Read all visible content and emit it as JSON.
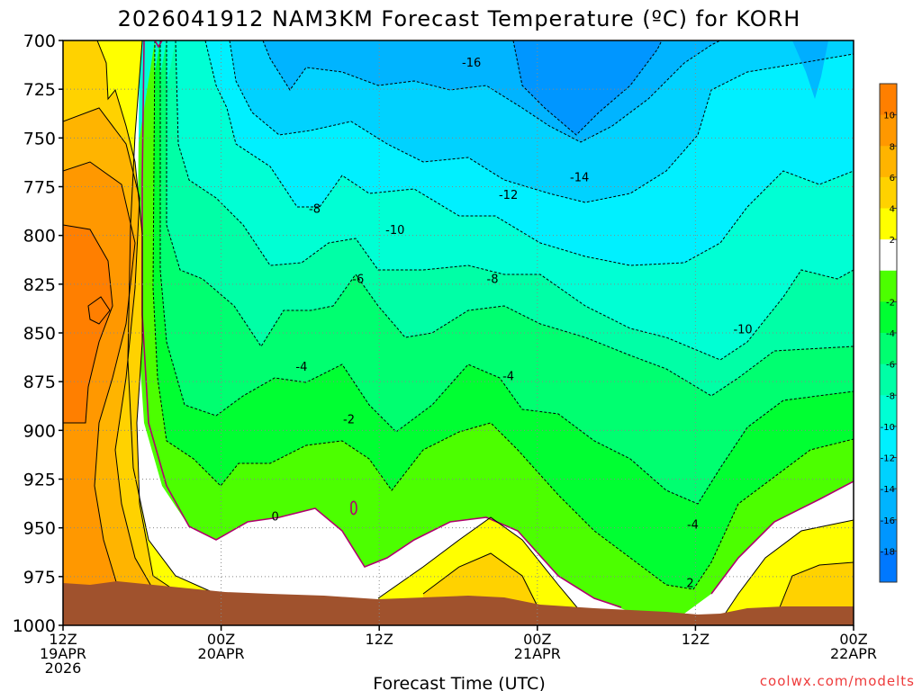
{
  "chart_data": {
    "type": "heatmap",
    "title": "2026041912 NAM3KM Forecast Temperature (ºC) for KORH",
    "xlabel": "Forecast Time (UTC)",
    "ylabel": "",
    "x_range_hours": [
      0,
      60
    ],
    "ylim": [
      1000,
      700
    ],
    "y_ticks": [
      "700",
      "725",
      "750",
      "775",
      "800",
      "825",
      "850",
      "875",
      "900",
      "925",
      "950",
      "975",
      "1000"
    ],
    "x_ticks": [
      {
        "hour": 0,
        "line1": "12Z",
        "line2": "19APR",
        "line3": "2026"
      },
      {
        "hour": 12,
        "line1": "00Z",
        "line2": "20APR",
        "line3": ""
      },
      {
        "hour": 24,
        "line1": "12Z",
        "line2": "",
        "line3": ""
      },
      {
        "hour": 36,
        "line1": "00Z",
        "line2": "21APR",
        "line3": ""
      },
      {
        "hour": 48,
        "line1": "12Z",
        "line2": "",
        "line3": ""
      },
      {
        "hour": 60,
        "line1": "00Z",
        "line2": "22APR",
        "line3": ""
      }
    ],
    "colorbar": {
      "colors": [
        "#ff7f00",
        "#ff9800",
        "#ffb400",
        "#ffd200",
        "#ffff00",
        "#ffffff",
        "#4cff00",
        "#00ff32",
        "#00ff70",
        "#00ffa6",
        "#00ffd4",
        "#00f0ff",
        "#00d2ff",
        "#00b4ff",
        "#0096ff",
        "#0078ff"
      ],
      "labels": [
        "10",
        "8",
        "6",
        "4",
        "2",
        "-2",
        "-4",
        "-6",
        "-8",
        "-10",
        "-12",
        "-14",
        "-16",
        "-18"
      ]
    },
    "contour_labels": [
      {
        "text": "-16",
        "hour": 31,
        "p": 711
      },
      {
        "text": "-14",
        "hour": 39.2,
        "p": 770
      },
      {
        "text": "-12",
        "hour": 33.8,
        "p": 779
      },
      {
        "text": "-10",
        "hour": 25.2,
        "p": 797
      },
      {
        "text": "-8",
        "hour": 19.1,
        "p": 786
      },
      {
        "text": "-8",
        "hour": 32.6,
        "p": 822
      },
      {
        "text": "-10",
        "hour": 51.6,
        "p": 848
      },
      {
        "text": "-6",
        "hour": 22.4,
        "p": 822
      },
      {
        "text": "-4",
        "hour": 18.1,
        "p": 867
      },
      {
        "text": "-4",
        "hour": 33.8,
        "p": 872
      },
      {
        "text": "-4",
        "hour": 47.8,
        "p": 948
      },
      {
        "text": "-2",
        "hour": 21.7,
        "p": 894
      },
      {
        "text": "0",
        "hour": 16.1,
        "p": 944
      },
      {
        "text": "2",
        "hour": 47.6,
        "p": 978
      }
    ],
    "credit": "coolwx.com/modelts"
  }
}
